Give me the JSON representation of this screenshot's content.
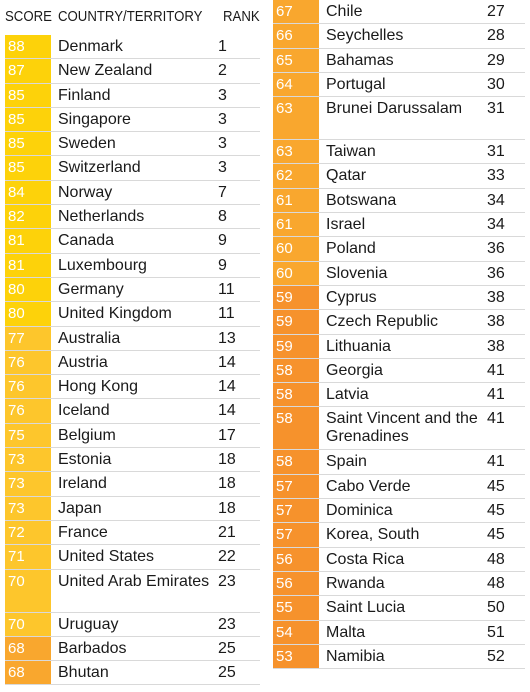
{
  "headers": {
    "score": "SCORE",
    "country": "COUNTRY/TERRITORY",
    "rank": "RANK"
  },
  "colors": {
    "score_90_plus": "#fed82c",
    "score_80s": "#fdd20a",
    "score_70s": "#fdc62c",
    "score_60s": "#f9a72e",
    "score_50s": "#f6922c"
  },
  "chart_data": {
    "type": "table",
    "columns": [
      "SCORE",
      "COUNTRY/TERRITORY",
      "RANK"
    ],
    "rows": [
      {
        "score": 88,
        "country": "Denmark",
        "rank": 1
      },
      {
        "score": 87,
        "country": "New Zealand",
        "rank": 2
      },
      {
        "score": 85,
        "country": "Finland",
        "rank": 3
      },
      {
        "score": 85,
        "country": "Singapore",
        "rank": 3
      },
      {
        "score": 85,
        "country": "Sweden",
        "rank": 3
      },
      {
        "score": 85,
        "country": "Switzerland",
        "rank": 3
      },
      {
        "score": 84,
        "country": "Norway",
        "rank": 7
      },
      {
        "score": 82,
        "country": "Netherlands",
        "rank": 8
      },
      {
        "score": 81,
        "country": "Canada",
        "rank": 9
      },
      {
        "score": 81,
        "country": "Luxembourg",
        "rank": 9
      },
      {
        "score": 80,
        "country": "Germany",
        "rank": 11
      },
      {
        "score": 80,
        "country": "United Kingdom",
        "rank": 11
      },
      {
        "score": 77,
        "country": "Australia",
        "rank": 13
      },
      {
        "score": 76,
        "country": "Austria",
        "rank": 14
      },
      {
        "score": 76,
        "country": "Hong Kong",
        "rank": 14
      },
      {
        "score": 76,
        "country": "Iceland",
        "rank": 14
      },
      {
        "score": 75,
        "country": "Belgium",
        "rank": 17
      },
      {
        "score": 73,
        "country": "Estonia",
        "rank": 18
      },
      {
        "score": 73,
        "country": "Ireland",
        "rank": 18
      },
      {
        "score": 73,
        "country": "Japan",
        "rank": 18
      },
      {
        "score": 72,
        "country": "France",
        "rank": 21
      },
      {
        "score": 71,
        "country": "United States",
        "rank": 22
      },
      {
        "score": 70,
        "country": "United Arab Emirates",
        "rank": 23
      },
      {
        "score": 70,
        "country": "Uruguay",
        "rank": 23
      },
      {
        "score": 68,
        "country": "Barbados",
        "rank": 25
      },
      {
        "score": 68,
        "country": "Bhutan",
        "rank": 25
      },
      {
        "score": 67,
        "country": "Chile",
        "rank": 27
      },
      {
        "score": 66,
        "country": "Seychelles",
        "rank": 28
      },
      {
        "score": 65,
        "country": "Bahamas",
        "rank": 29
      },
      {
        "score": 64,
        "country": "Portugal",
        "rank": 30
      },
      {
        "score": 63,
        "country": "Brunei Darussalam",
        "rank": 31
      },
      {
        "score": 63,
        "country": "Taiwan",
        "rank": 31
      },
      {
        "score": 62,
        "country": "Qatar",
        "rank": 33
      },
      {
        "score": 61,
        "country": "Botswana",
        "rank": 34
      },
      {
        "score": 61,
        "country": "Israel",
        "rank": 34
      },
      {
        "score": 60,
        "country": "Poland",
        "rank": 36
      },
      {
        "score": 60,
        "country": "Slovenia",
        "rank": 36
      },
      {
        "score": 59,
        "country": "Cyprus",
        "rank": 38
      },
      {
        "score": 59,
        "country": "Czech Republic",
        "rank": 38
      },
      {
        "score": 59,
        "country": "Lithuania",
        "rank": 38
      },
      {
        "score": 58,
        "country": "Georgia",
        "rank": 41
      },
      {
        "score": 58,
        "country": "Latvia",
        "rank": 41
      },
      {
        "score": 58,
        "country": "Saint Vincent and the Grenadines",
        "rank": 41
      },
      {
        "score": 58,
        "country": "Spain",
        "rank": 41
      },
      {
        "score": 57,
        "country": "Cabo Verde",
        "rank": 45
      },
      {
        "score": 57,
        "country": "Dominica",
        "rank": 45
      },
      {
        "score": 57,
        "country": "Korea, South",
        "rank": 45
      },
      {
        "score": 56,
        "country": "Costa Rica",
        "rank": 48
      },
      {
        "score": 56,
        "country": "Rwanda",
        "rank": 48
      },
      {
        "score": 55,
        "country": "Saint Lucia",
        "rank": 50
      },
      {
        "score": 54,
        "country": "Malta",
        "rank": 51
      },
      {
        "score": 53,
        "country": "Namibia",
        "rank": 52
      }
    ]
  }
}
